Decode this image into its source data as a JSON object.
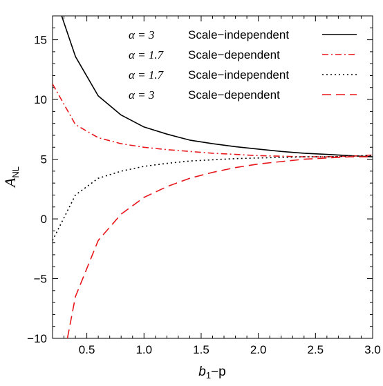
{
  "chart_data": {
    "type": "line",
    "xlabel": "b_1−p",
    "ylabel": "A_NL",
    "xlim": [
      0.2,
      3.0
    ],
    "ylim": [
      -10,
      17
    ],
    "xticks": [
      0.5,
      1.0,
      1.5,
      2.0,
      2.5,
      3.0
    ],
    "xtick_labels": [
      "0.5",
      "1.0",
      "1.5",
      "2.0",
      "2.5",
      "3.0"
    ],
    "yticks": [
      -10,
      -5,
      0,
      5,
      10,
      15
    ],
    "ytick_labels": [
      "−10",
      "−5",
      "0",
      "5",
      "10",
      "15"
    ],
    "legend_placement": "top-right",
    "grid": false,
    "series": [
      {
        "name": "α = 3  Scale−independent",
        "alpha": "α = 3",
        "label": "Scale−independent",
        "color": "#000000",
        "style": "solid",
        "x": [
          0.28,
          0.4,
          0.6,
          0.8,
          1.0,
          1.2,
          1.4,
          1.6,
          1.8,
          2.0,
          2.2,
          2.4,
          2.6,
          2.8,
          3.0
        ],
        "y": [
          17.0,
          13.6,
          10.3,
          8.7,
          7.7,
          7.1,
          6.6,
          6.3,
          6.05,
          5.85,
          5.65,
          5.5,
          5.4,
          5.3,
          5.2
        ]
      },
      {
        "name": "α = 1.7  Scale−dependent",
        "alpha": "α = 1.7",
        "label": "Scale−dependent",
        "color": "#e8161b",
        "style": "dashdot",
        "x": [
          0.2,
          0.4,
          0.6,
          0.8,
          1.0,
          1.2,
          1.4,
          1.6,
          1.8,
          2.0,
          2.2,
          2.4,
          2.6,
          2.8,
          3.0
        ],
        "y": [
          11.3,
          7.9,
          6.8,
          6.3,
          6.0,
          5.8,
          5.65,
          5.5,
          5.4,
          5.3,
          5.25,
          5.2,
          5.2,
          5.25,
          5.35
        ]
      },
      {
        "name": "α = 1.7  Scale−independent",
        "alpha": "α = 1.7",
        "label": "Scale−independent",
        "color": "#000000",
        "style": "dotted",
        "x": [
          0.2,
          0.4,
          0.6,
          0.8,
          1.0,
          1.2,
          1.4,
          1.6,
          1.8,
          2.0,
          2.2,
          2.4,
          2.6,
          2.8,
          3.0
        ],
        "y": [
          -1.8,
          2.0,
          3.4,
          4.0,
          4.4,
          4.65,
          4.85,
          4.95,
          5.05,
          5.1,
          5.15,
          5.2,
          5.2,
          5.25,
          5.3
        ]
      },
      {
        "name": "α = 3  Scale−dependent",
        "alpha": "α = 3",
        "label": "Scale−dependent",
        "color": "#e8161b",
        "style": "dashed",
        "x": [
          0.33,
          0.4,
          0.6,
          0.8,
          1.0,
          1.2,
          1.4,
          1.6,
          1.8,
          2.0,
          2.2,
          2.4,
          2.6,
          2.8,
          3.0
        ],
        "y": [
          -10.0,
          -6.5,
          -1.8,
          0.4,
          1.8,
          2.7,
          3.4,
          3.9,
          4.3,
          4.6,
          4.8,
          5.0,
          5.1,
          5.2,
          5.2
        ]
      }
    ]
  }
}
